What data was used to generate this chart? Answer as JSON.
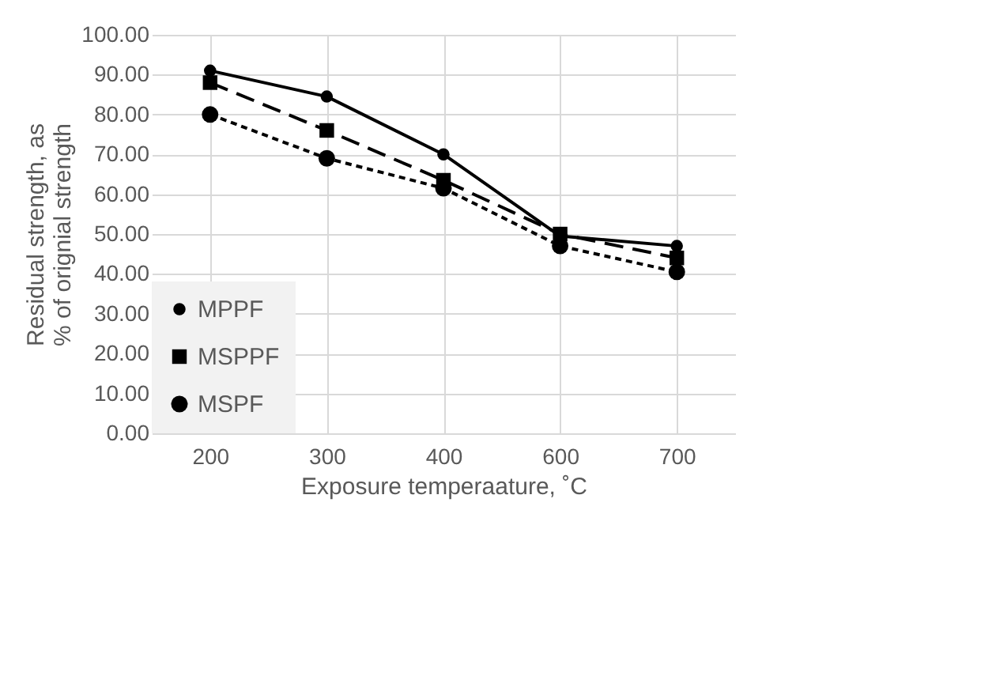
{
  "chart_data": {
    "type": "line",
    "xlabel": "Exposure temperaature, ˚C",
    "ylabel": "Residual strength, as % of orignial strength",
    "categories": [
      "200",
      "300",
      "400",
      "600",
      "700"
    ],
    "series": [
      {
        "name": "MPPF",
        "color": "#000000",
        "marker": "circle",
        "line_style": "solid",
        "values": [
          91.0,
          84.5,
          70.0,
          49.5,
          47.0
        ]
      },
      {
        "name": "MSPPF",
        "color": "#000000",
        "marker": "square",
        "line_style": "dashed",
        "values": [
          88.0,
          76.0,
          63.5,
          50.0,
          44.0
        ]
      },
      {
        "name": "MSPF",
        "color": "#000000",
        "marker": "circle",
        "line_style": "dotted",
        "values": [
          80.0,
          69.0,
          61.5,
          47.0,
          40.5
        ]
      }
    ],
    "ylim": [
      0,
      100
    ],
    "yticks": [
      {
        "value": 0,
        "label": "0.00"
      },
      {
        "value": 10,
        "label": "10.00"
      },
      {
        "value": 20,
        "label": "20.00"
      },
      {
        "value": 30,
        "label": "30.00"
      },
      {
        "value": 40,
        "label": "40.00"
      },
      {
        "value": 50,
        "label": "50.00"
      },
      {
        "value": 60,
        "label": "60.00"
      },
      {
        "value": 70,
        "label": "70.00"
      },
      {
        "value": 80,
        "label": "80.00"
      },
      {
        "value": 90,
        "label": "90.00"
      },
      {
        "value": 100,
        "label": "100.00"
      }
    ],
    "grid": true,
    "legend": "bottom left"
  }
}
